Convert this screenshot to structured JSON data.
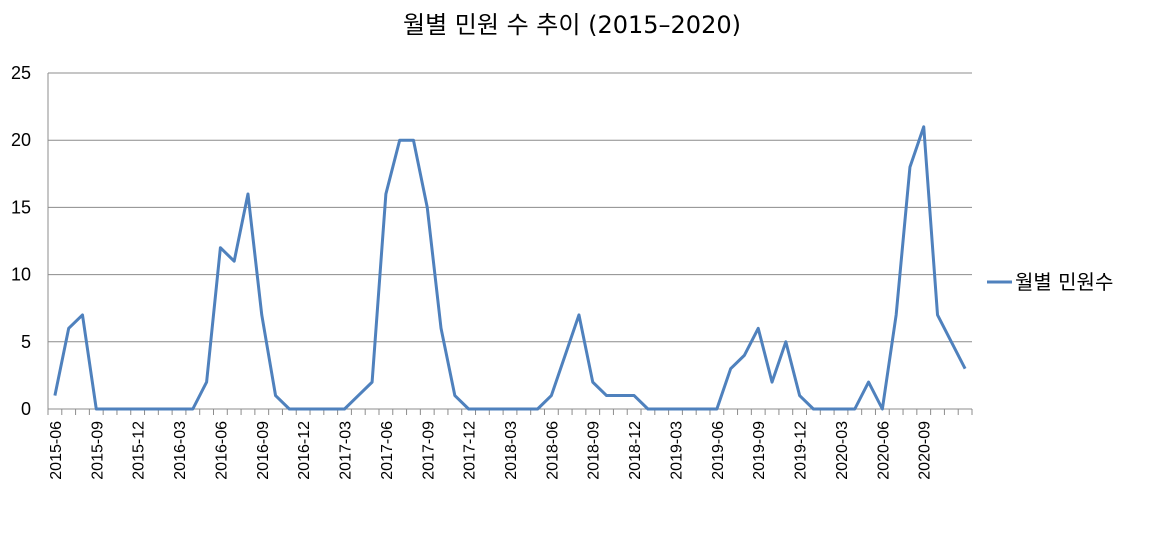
{
  "chart_data": {
    "type": "line",
    "title": "월별 민원 수 추이 (2015–2020)",
    "xlabel": "",
    "ylabel": "",
    "ylim": [
      0,
      25
    ],
    "yticks": [
      0,
      5,
      10,
      15,
      20,
      25
    ],
    "grid": "horizontal",
    "legend_position": "right",
    "x": [
      "2015-06",
      "2015-07",
      "2015-08",
      "2015-09",
      "2015-10",
      "2015-11",
      "2015-12",
      "2016-01",
      "2016-02",
      "2016-03",
      "2016-04",
      "2016-05",
      "2016-06",
      "2016-07",
      "2016-08",
      "2016-09",
      "2016-10",
      "2016-11",
      "2016-12",
      "2017-01",
      "2017-02",
      "2017-03",
      "2017-04",
      "2017-05",
      "2017-06",
      "2017-07",
      "2017-08",
      "2017-09",
      "2017-10",
      "2017-11",
      "2017-12",
      "2018-01",
      "2018-02",
      "2018-03",
      "2018-04",
      "2018-05",
      "2018-06",
      "2018-07",
      "2018-08",
      "2018-09",
      "2018-10",
      "2018-11",
      "2018-12",
      "2019-01",
      "2019-02",
      "2019-03",
      "2019-04",
      "2019-05",
      "2019-06",
      "2019-07",
      "2019-08",
      "2019-09",
      "2019-10",
      "2019-11",
      "2019-12",
      "2020-01",
      "2020-02",
      "2020-03",
      "2020-04",
      "2020-05",
      "2020-06",
      "2020-07",
      "2020-08",
      "2020-09",
      "2020-10",
      "2020-11",
      "2020-12"
    ],
    "x_tick_labels": [
      "2015-06",
      "2015-09",
      "2015-12",
      "2016-03",
      "2016-06",
      "2016-09",
      "2016-12",
      "2017-03",
      "2017-06",
      "2017-09",
      "2017-12",
      "2018-03",
      "2018-06",
      "2018-09",
      "2018-12",
      "2019-03",
      "2019-06",
      "2019-09",
      "2019-12",
      "2020-03",
      "2020-06",
      "2020-09"
    ],
    "series": [
      {
        "name": "월별 민원수",
        "color": "#4f81bd",
        "values": [
          1,
          6,
          7,
          0,
          0,
          0,
          0,
          0,
          0,
          0,
          0,
          2,
          12,
          11,
          16,
          7,
          1,
          0,
          0,
          0,
          0,
          0,
          1,
          2,
          16,
          20,
          20,
          15,
          6,
          1,
          0,
          0,
          0,
          0,
          0,
          0,
          1,
          4,
          7,
          2,
          1,
          1,
          1,
          0,
          0,
          0,
          0,
          0,
          0,
          3,
          4,
          6,
          2,
          5,
          1,
          0,
          0,
          0,
          0,
          2,
          0,
          7,
          18,
          21,
          7,
          5,
          3
        ]
      }
    ]
  }
}
